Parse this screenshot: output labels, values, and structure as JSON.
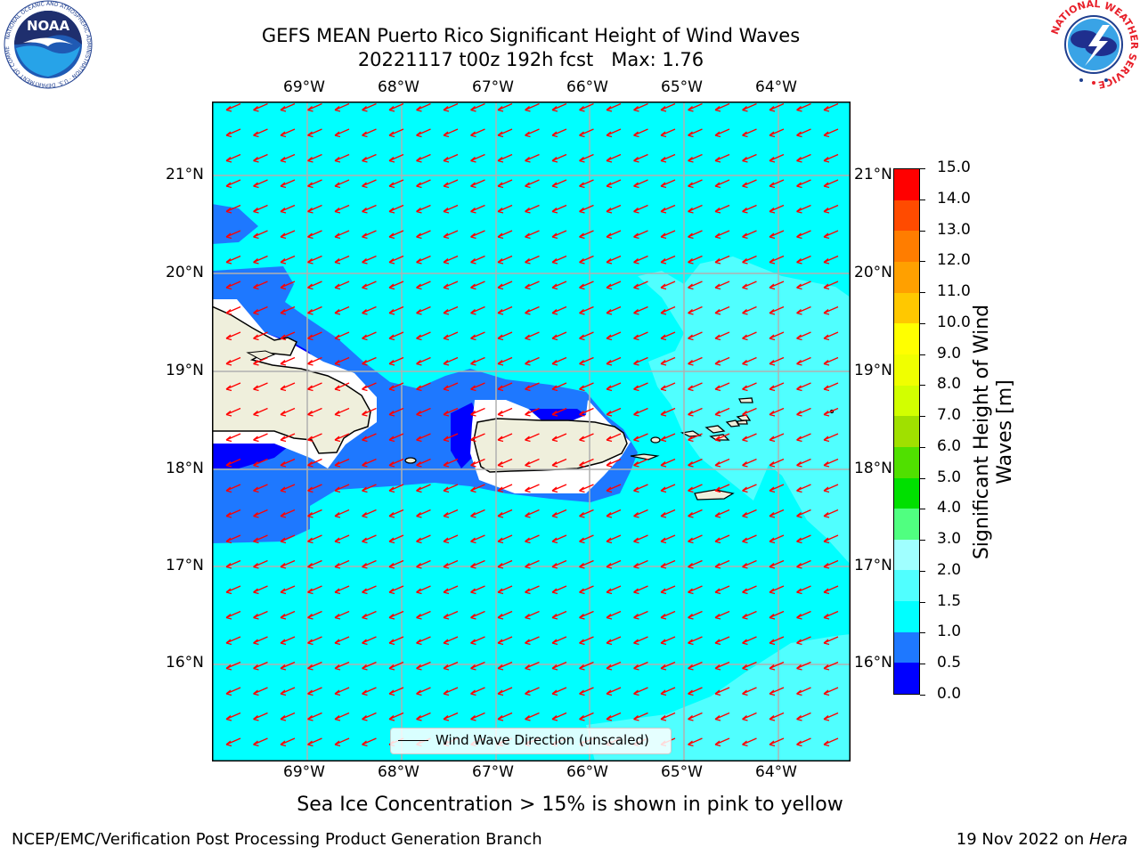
{
  "header": {
    "title_line1": "GEFS MEAN Puerto Rico Significant Height of Wind Waves",
    "title_line2": "20221117 t00z 192h fcst   Max: 1.76"
  },
  "logos": {
    "left_text": "NOAA",
    "left_ring_text": "NATIONAL OCEANIC AND ATMOSPHERIC ADMINISTRATION · U.S. DEPARTMENT OF COMMERCE",
    "right_ring_text": "NATIONAL WEATHER SERVICE"
  },
  "map": {
    "longitude_ticks": [
      "69°W",
      "68°W",
      "67°W",
      "66°W",
      "65°W",
      "64°W"
    ],
    "latitude_ticks": [
      "21°N",
      "20°N",
      "19°N",
      "18°N",
      "17°N",
      "16°N"
    ],
    "legend_label": "Wind Wave Direction (unscaled)",
    "colors": {
      "ocean_fill": "#00ffff",
      "land": "#efefdc",
      "arrow": "#ff0000"
    }
  },
  "colorbar": {
    "label_line1": "Significant Height of Wind",
    "label_line2": "Waves [m]",
    "ticks": [
      "0.0",
      "0.5",
      "1.0",
      "1.5",
      "2.0",
      "3.0",
      "4.0",
      "5.0",
      "6.0",
      "7.0",
      "8.0",
      "9.0",
      "10.0",
      "11.0",
      "12.0",
      "13.0",
      "14.0",
      "15.0"
    ],
    "colors": [
      "#0000ff",
      "#1e78ff",
      "#00ffff",
      "#50ffff",
      "#a0ffff",
      "#50ff80",
      "#00e000",
      "#50e000",
      "#a0e000",
      "#d2ff00",
      "#f0ff00",
      "#ffff00",
      "#ffc800",
      "#ffa000",
      "#ff7d00",
      "#ff4b00",
      "#ff0000"
    ]
  },
  "sea_ice_note": "Sea Ice Concentration > 15% is shown in pink to yellow",
  "footer": {
    "left": "NCEP/EMC/Verification Post Processing Product Generation Branch",
    "right_prefix": "19 Nov 2022 on ",
    "right_host": "Hera"
  }
}
